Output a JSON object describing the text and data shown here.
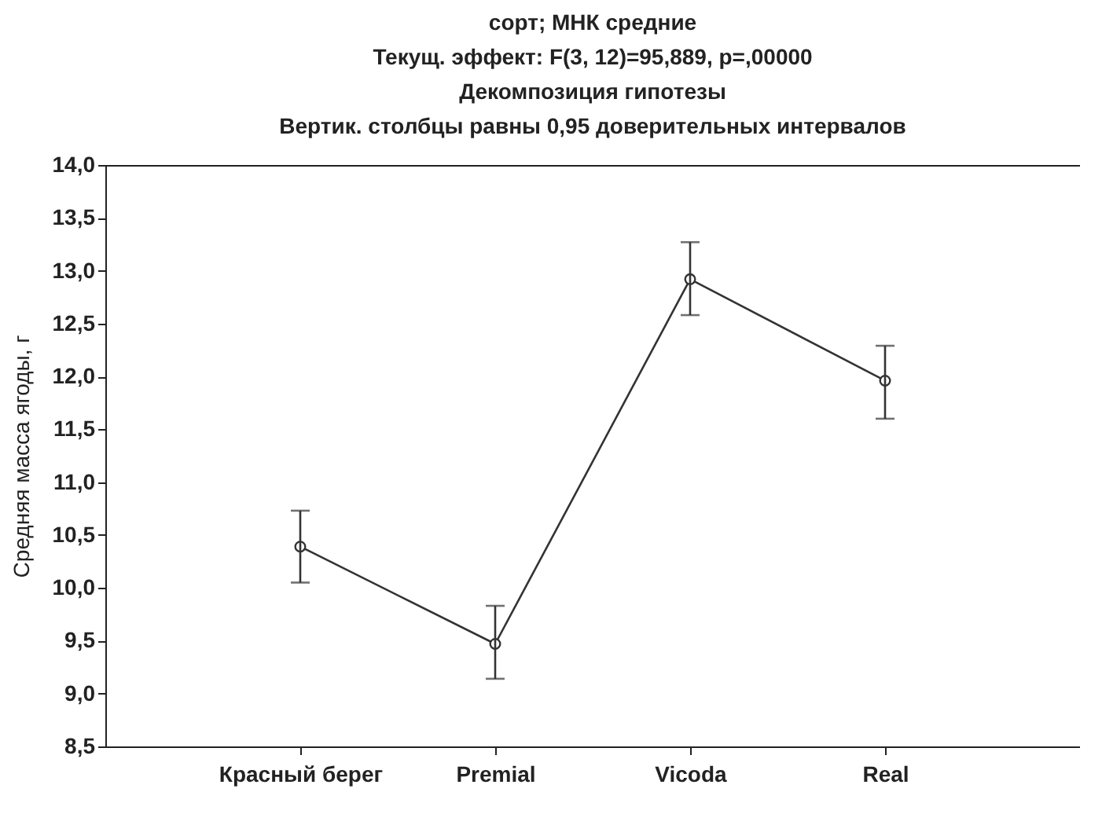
{
  "chart_data": {
    "type": "line",
    "title": "сорт; МНК средние",
    "subtitle": [
      "Текущ.  эффект: F(3, 12)=95,889, p=,00000",
      "Декомпозиция гипотезы",
      "Вертик. столбцы равны 0,95 доверительных интервалов"
    ],
    "ylabel": "Средняя масса ягоды, г",
    "categories": [
      "Красный берег",
      "Premial",
      "Vicoda",
      "Real"
    ],
    "series": [
      {
        "color": "#333333",
        "values": [
          10.39,
          9.47,
          12.92,
          11.96
        ],
        "errors": [
          [
            10.05,
            10.73
          ],
          [
            9.14,
            9.83
          ],
          [
            12.58,
            13.27
          ],
          [
            11.6,
            12.29
          ]
        ]
      }
    ],
    "ylim": [
      8.5,
      14
    ],
    "yticks": [
      {
        "value": 8.5,
        "label": "8,5"
      },
      {
        "value": 9,
        "label": "9,0"
      },
      {
        "value": 9.5,
        "label": "9,5"
      },
      {
        "value": 10,
        "label": "10,0"
      },
      {
        "value": 10.5,
        "label": "10,5"
      },
      {
        "value": 11,
        "label": "11,0"
      },
      {
        "value": 11.5,
        "label": "11,5"
      },
      {
        "value": 12,
        "label": "12,0"
      },
      {
        "value": 12.5,
        "label": "12,5"
      },
      {
        "value": 13,
        "label": "13,0"
      },
      {
        "value": 13.5,
        "label": "13,5"
      },
      {
        "value": 14,
        "label": "14,0"
      }
    ],
    "grid": false,
    "marker": "circle",
    "line_style": "solid"
  }
}
